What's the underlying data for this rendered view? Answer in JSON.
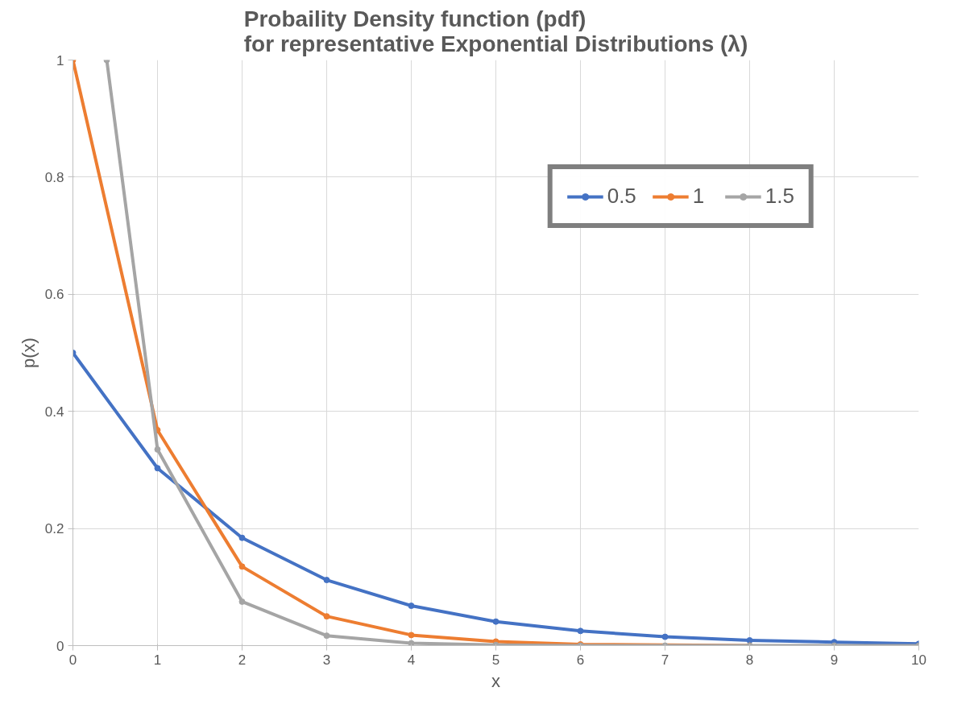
{
  "chart_data": {
    "type": "line",
    "title": "Probaility Density function (pdf)\nfor representative Exponential Distributions (λ)",
    "xlabel": "x",
    "ylabel": "p(x)",
    "x": [
      0,
      1,
      2,
      3,
      4,
      5,
      6,
      7,
      8,
      9,
      10
    ],
    "series": [
      {
        "name": "0.5",
        "color": "#4472c4",
        "values": [
          0.5,
          0.303,
          0.184,
          0.112,
          0.068,
          0.041,
          0.025,
          0.015,
          0.009,
          0.006,
          0.003
        ]
      },
      {
        "name": "1",
        "color": "#ed7d31",
        "values": [
          1,
          0.368,
          0.135,
          0.05,
          0.018,
          0.007,
          0.002,
          null,
          0,
          null,
          null
        ]
      },
      {
        "name": "1.5",
        "color": "#a5a5a5",
        "x": [
          0.4,
          1,
          2,
          3,
          4,
          5,
          6,
          7,
          8,
          9,
          10
        ],
        "values": [
          1,
          0.335,
          0.075,
          0.017,
          0.004,
          0.001,
          0,
          0,
          0,
          0,
          0
        ]
      }
    ],
    "xlim": [
      0,
      10
    ],
    "xticks": [
      0,
      1,
      2,
      3,
      4,
      5,
      6,
      7,
      8,
      9,
      10
    ],
    "ylim": [
      0,
      1
    ],
    "yticks": [
      0,
      0.2,
      0.4,
      0.6,
      0.8,
      1
    ],
    "grid": true,
    "legend": "top right",
    "marker": "circle",
    "line_style": "solid"
  }
}
